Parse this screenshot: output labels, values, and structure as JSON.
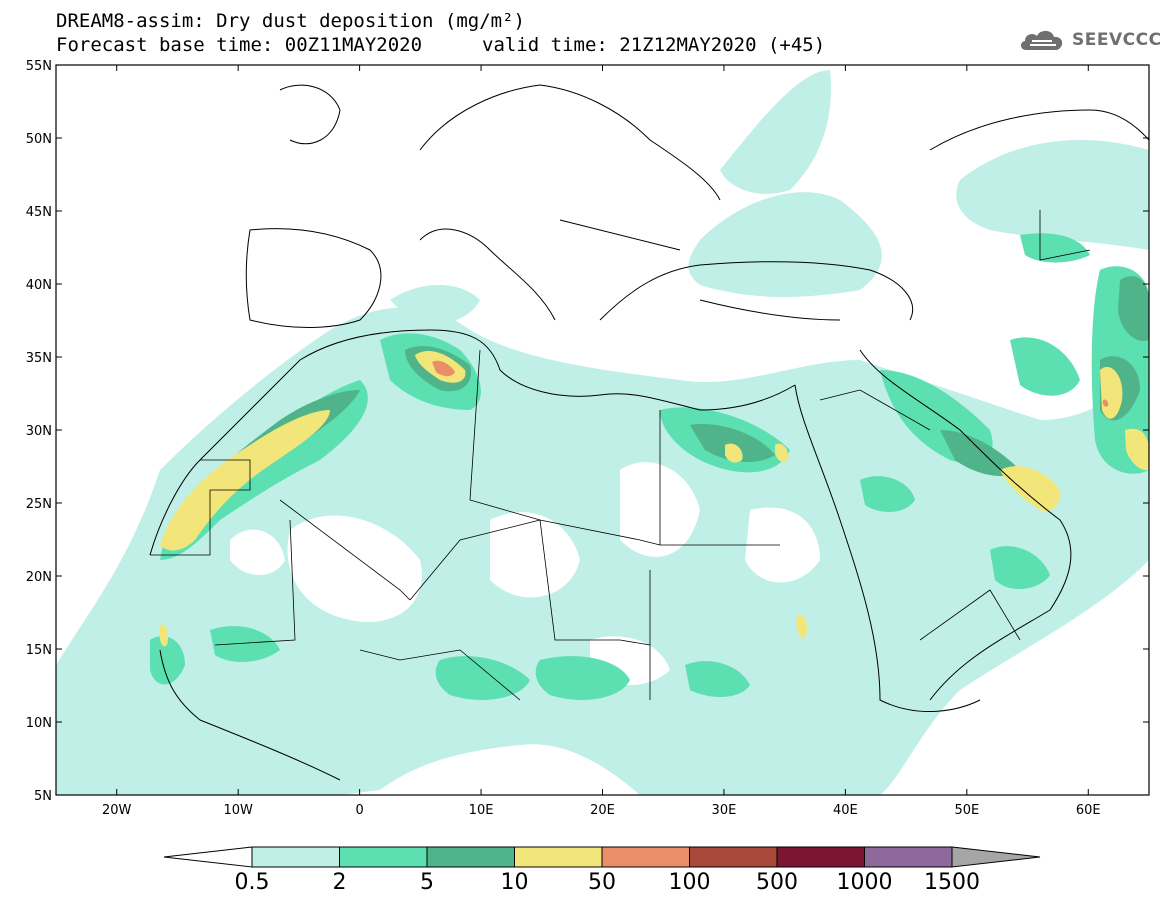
{
  "header": {
    "title_line1": "DREAM8-assim: Dry dust deposition (mg/m²)",
    "title_line2": "Forecast base time: 00Z11MAY2020",
    "valid_time": "valid time: 21Z12MAY2020 (+45)",
    "logo_text": "SEEVCCC",
    "logo_icon": "cloud-icon"
  },
  "map": {
    "variable": "Dry dust deposition",
    "units": "mg/m²",
    "lon_range": [
      -25,
      65
    ],
    "lat_range": [
      5,
      55
    ],
    "lat_labels": [
      "55N",
      "50N",
      "45N",
      "40N",
      "35N",
      "30N",
      "25N",
      "20N",
      "15N",
      "10N",
      "5N"
    ],
    "lon_labels": [
      "20W",
      "10W",
      "0",
      "10E",
      "20E",
      "30E",
      "40E",
      "50E",
      "60E"
    ],
    "background": "#ffffff",
    "coastline_color": "#000000"
  },
  "legend": {
    "levels": [
      "0.5",
      "2",
      "5",
      "10",
      "50",
      "100",
      "500",
      "1000",
      "1500"
    ],
    "colors": [
      "#bfefe7",
      "#5cdfb1",
      "#4fb48a",
      "#f2e67a",
      "#ea8e6a",
      "#a9493c",
      "#7c1532",
      "#8d6a9b",
      "#a6a6a6"
    ],
    "under_color": "#ffffff",
    "over_color": "#a6a6a6"
  }
}
